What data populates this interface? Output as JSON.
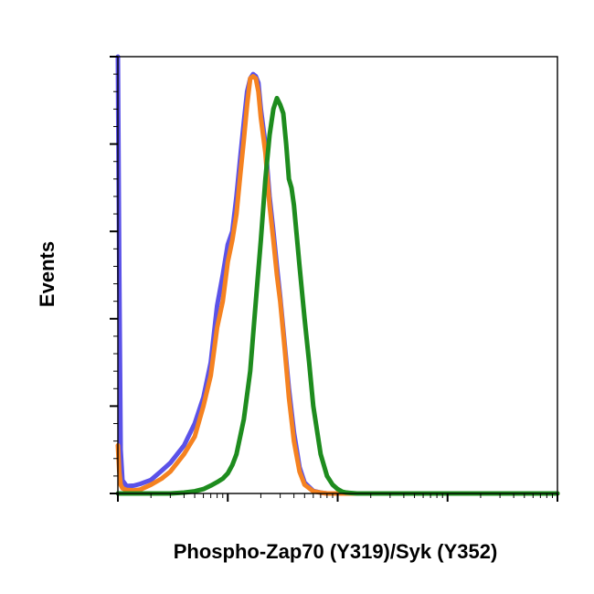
{
  "chart_data": {
    "type": "line",
    "title": "",
    "xlabel": "Phospho-Zap70 (Y319)/Syk (Y352)",
    "ylabel": "Events",
    "x_scale": "log",
    "xlim": [
      1,
      10000
    ],
    "ylim": [
      0,
      100
    ],
    "x_major_ticks": [
      1,
      10,
      100,
      1000,
      10000
    ],
    "y_major_ticks": [
      0,
      20,
      40,
      60,
      80,
      100
    ],
    "tick_labels_shown": false,
    "grid": false,
    "legend": "none",
    "series": [
      {
        "color": "#5b52e8",
        "x": [
          1,
          1.03,
          1.06,
          1.1,
          1.2,
          1.4,
          1.6,
          2,
          2.5,
          3,
          4,
          5,
          6,
          7,
          8,
          9,
          10,
          11,
          12,
          13,
          14,
          15,
          16,
          17,
          18,
          19,
          20,
          22,
          24,
          26,
          28,
          30,
          33,
          36,
          40,
          45,
          50,
          60,
          70,
          80,
          100,
          150,
          300,
          1000,
          10000
        ],
        "y": [
          100,
          50,
          10,
          3,
          1.7,
          1.8,
          2.2,
          3.1,
          5.2,
          7,
          11,
          16,
          22,
          30,
          43,
          50,
          57,
          60,
          68,
          77,
          85,
          92,
          95,
          96,
          95.5,
          94,
          88,
          80,
          68,
          60,
          52,
          45,
          34,
          24,
          14,
          6,
          2.5,
          0.6,
          0.2,
          0,
          0,
          0,
          0,
          0,
          0
        ]
      },
      {
        "color": "#f58220",
        "x": [
          1,
          1.03,
          1.06,
          1.1,
          1.2,
          1.4,
          1.6,
          2,
          2.5,
          3,
          4,
          5,
          6,
          7,
          8,
          9,
          10,
          11,
          12,
          13,
          14,
          15,
          16,
          17,
          18,
          19,
          20,
          22,
          24,
          26,
          28,
          30,
          33,
          36,
          40,
          45,
          50,
          60,
          70,
          80,
          100,
          150,
          300,
          1000,
          10000
        ],
        "y": [
          11,
          5,
          2,
          1.2,
          0.8,
          0.7,
          0.9,
          2,
          3.4,
          5,
          9,
          13,
          20,
          27,
          38,
          44,
          53,
          58,
          64,
          73,
          81,
          89,
          95,
          95.5,
          95,
          92,
          86,
          78,
          66,
          58,
          50,
          44,
          33,
          22,
          12,
          5,
          2,
          0.5,
          0.2,
          0,
          0,
          0,
          0,
          0,
          0
        ]
      },
      {
        "color": "#1e8c1e",
        "x": [
          1,
          2,
          3,
          4,
          5,
          6,
          7,
          8,
          9,
          10,
          11,
          12,
          14,
          16,
          18,
          20,
          22,
          24,
          26,
          28,
          30,
          32,
          34,
          36,
          38,
          40,
          45,
          50,
          55,
          60,
          70,
          80,
          90,
          100,
          110,
          120,
          150,
          200,
          300,
          1000,
          10000
        ],
        "y": [
          0,
          0,
          0,
          0.2,
          0.5,
          1,
          1.8,
          2.6,
          3.4,
          4.6,
          6.5,
          9,
          17,
          28,
          44,
          58,
          72,
          82,
          88,
          90.5,
          89,
          87,
          80,
          72,
          70,
          66,
          52,
          40,
          30,
          20,
          9,
          4,
          2,
          1,
          0.4,
          0.2,
          0,
          0,
          0,
          0,
          0
        ]
      }
    ]
  }
}
